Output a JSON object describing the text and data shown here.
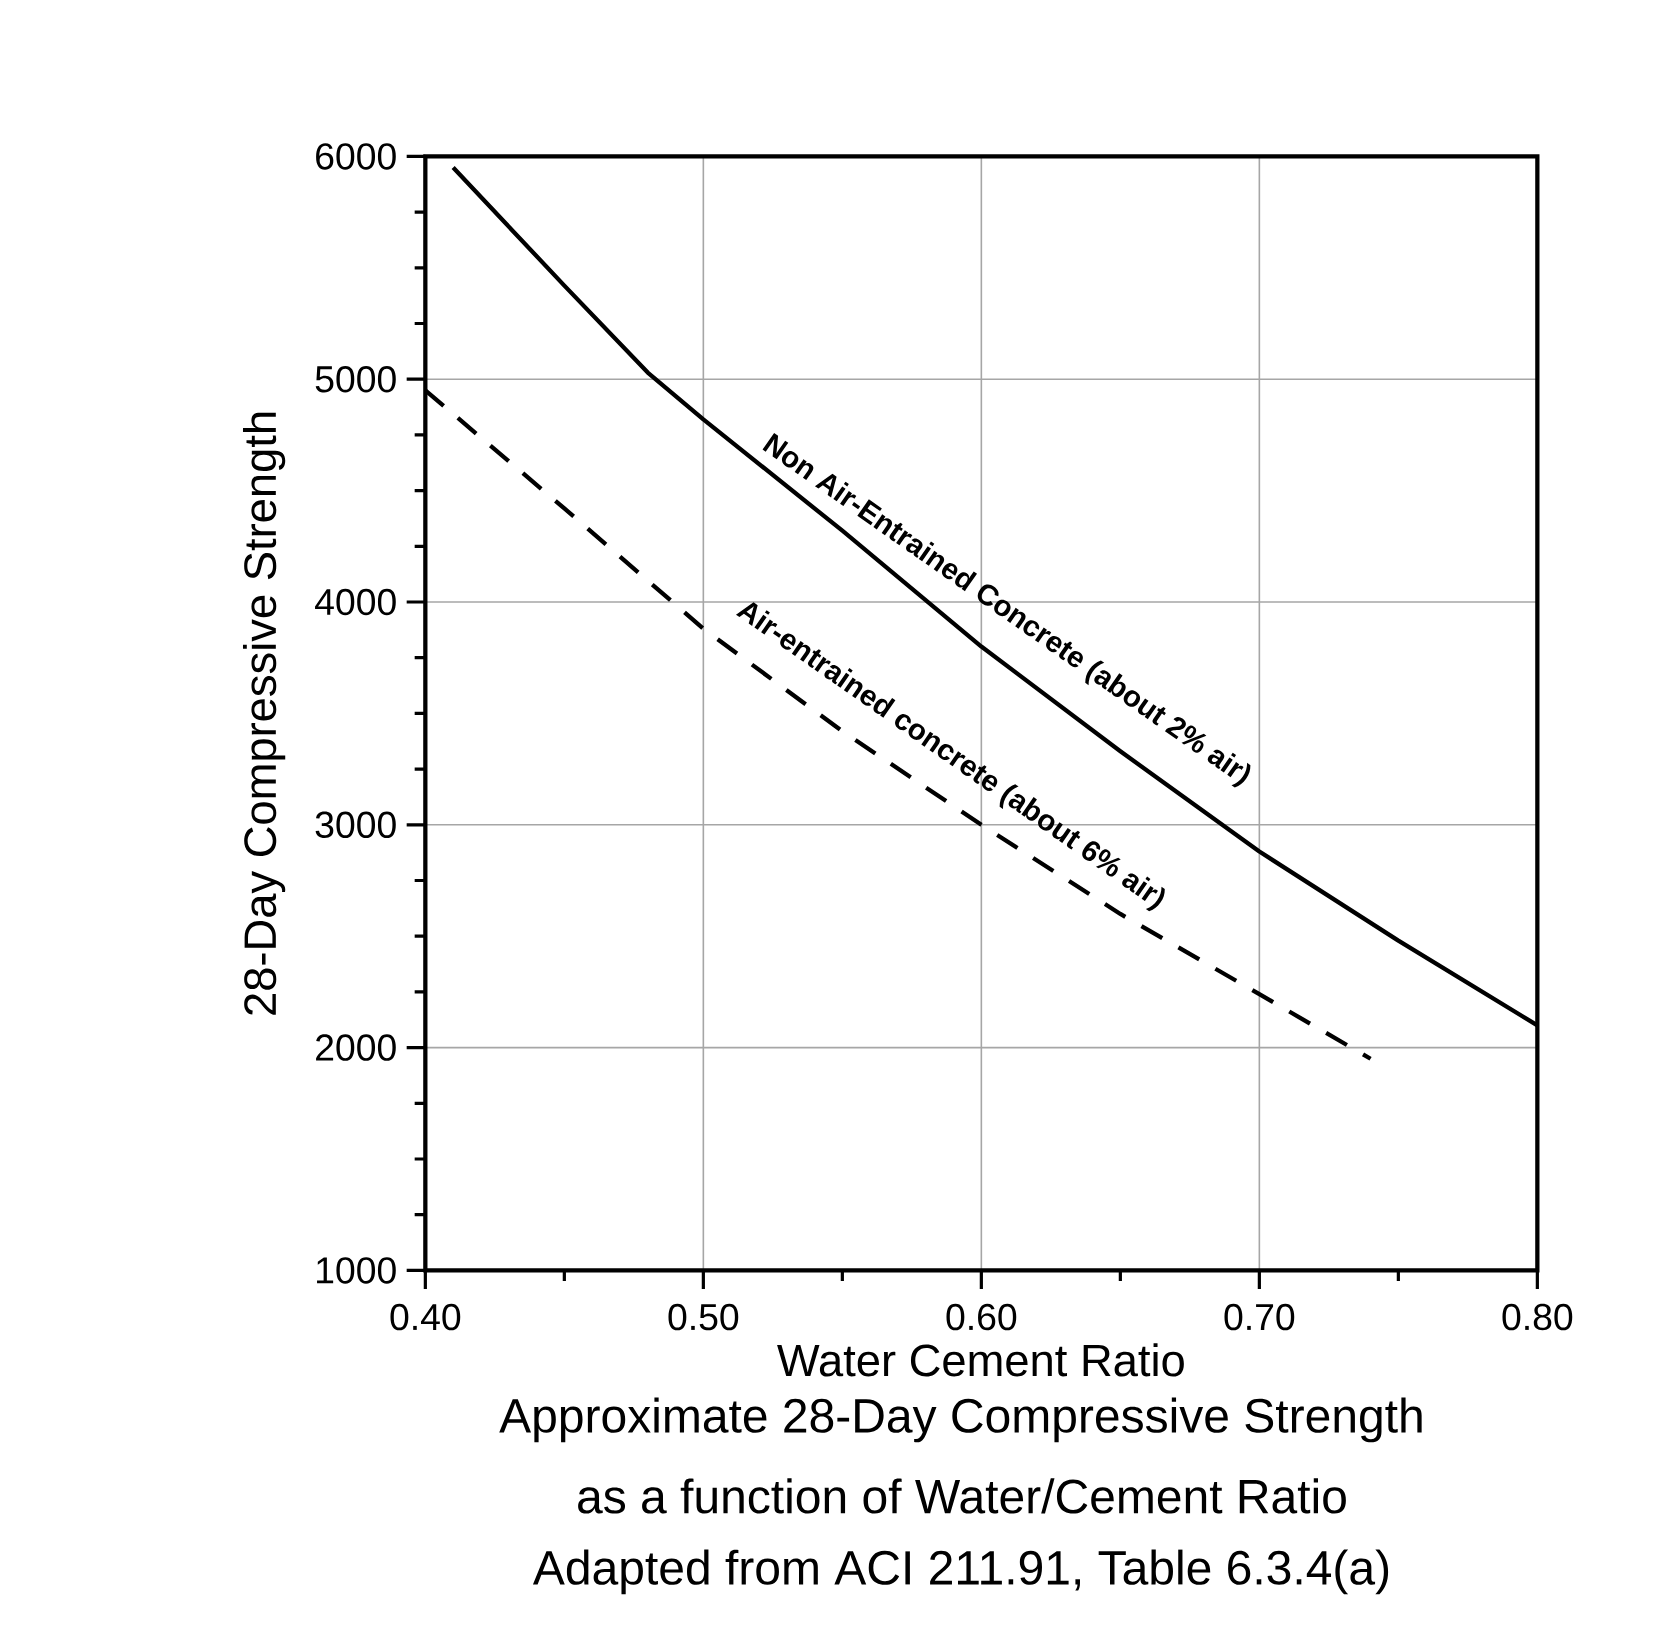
{
  "chart_data": {
    "type": "line",
    "title": "Approximate 28-Day Compressive Strength",
    "subtitle": "as a function of Water/Cement Ratio",
    "xlabel": "Water Cement Ratio",
    "ylabel": "28-Day Compressive Strength",
    "xlim": [
      0.4,
      0.8
    ],
    "xticks": [
      {
        "value": 0.4,
        "label": "0.40"
      },
      {
        "value": 0.5,
        "label": "0.50"
      },
      {
        "value": 0.6,
        "label": "0.60"
      },
      {
        "value": 0.7,
        "label": "0.70"
      },
      {
        "value": 0.8,
        "label": "0.80"
      }
    ],
    "ylim": [
      1000,
      6000
    ],
    "yticks": [
      1000,
      2000,
      3000,
      4000,
      5000,
      6000
    ],
    "grid": true,
    "marker": "none",
    "series": [
      {
        "color": "#000000",
        "line_style": "solid",
        "x": [
          0.41,
          0.45,
          0.48,
          0.5,
          0.55,
          0.6,
          0.65,
          0.7,
          0.75,
          0.8
        ],
        "values": [
          5950,
          5420,
          5030,
          4820,
          4320,
          3800,
          3330,
          2880,
          2480,
          2100
        ]
      },
      {
        "color": "#000000",
        "line_style": "dashed",
        "x": [
          0.4,
          0.45,
          0.5,
          0.55,
          0.6,
          0.65,
          0.7,
          0.74
        ],
        "values": [
          4950,
          4420,
          3880,
          3420,
          3000,
          2600,
          2240,
          1950
        ]
      }
    ],
    "annotations": [
      {
        "text": "Non Air-Entrained Concrete (about 2% air)",
        "x": 0.6,
        "y": 3800
      },
      {
        "text": "Air-entrained concrete (about 6% air)",
        "x": 0.58,
        "y": 3150
      },
      "Adapted from ACI 211.91, Table 6.3.4(a)"
    ]
  }
}
